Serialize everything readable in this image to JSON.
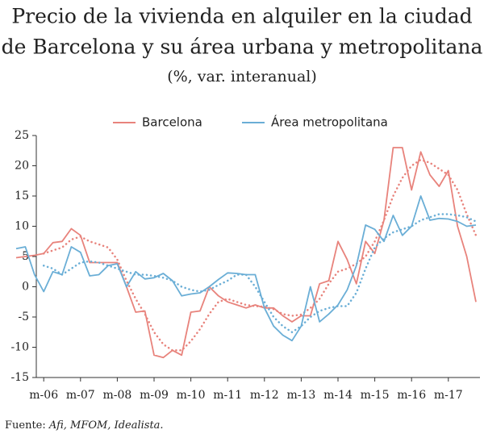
{
  "chart_data": {
    "type": "line",
    "title": [
      "Precio de la vivienda en alquiler en la ciudad",
      "de Barcelona y su área urbana y metropolitana"
    ],
    "subtitle": "(%, var. interanual)",
    "source_label": "Fuente:",
    "source": "Afi, MFOM, Idealista.",
    "categories": [
      null,
      null,
      null,
      "m-06",
      null,
      null,
      null,
      "m-07",
      null,
      null,
      null,
      "m-08",
      null,
      null,
      null,
      "m-09",
      null,
      null,
      null,
      "m-10",
      null,
      null,
      null,
      "m-11",
      null,
      null,
      null,
      "m-12",
      null,
      null,
      null,
      "m-13",
      null,
      null,
      null,
      "m-14",
      null,
      null,
      null,
      "m-15",
      null,
      null,
      null,
      "m-16",
      null,
      null,
      null,
      "m-17",
      null,
      null,
      null
    ],
    "ylim": [
      -15,
      25
    ],
    "yticks": [
      -15,
      -10,
      -5,
      0,
      5,
      10,
      15,
      20,
      25
    ],
    "grid": false,
    "legend": "top",
    "series": [
      {
        "name": "Barcelona",
        "color": "#e8837c",
        "values": [
          4.8,
          5.0,
          5.2,
          5.5,
          7.3,
          7.5,
          9.6,
          8.5,
          4.0,
          4.0,
          4.0,
          4.0,
          0,
          -4.2,
          -4.0,
          -11.3,
          -11.7,
          -10.5,
          -11.3,
          -4.2,
          -4.0,
          0,
          -1.5,
          -2.5,
          -3,
          -3.5,
          -3,
          -3.5,
          -3.5,
          -4.8,
          -5.8,
          -4.8,
          -4.8,
          0.5,
          1,
          7.5,
          4.5,
          0.5,
          7.5,
          5.5,
          11,
          23,
          23,
          16,
          22.3,
          18.5,
          16.6,
          19.2,
          10,
          5,
          -2.5
        ],
        "trend_values": [
          null,
          null,
          null,
          5.5,
          6,
          6.5,
          7.8,
          8.3,
          7.5,
          7,
          6.5,
          4.5,
          1,
          -2,
          -4.5,
          -7.5,
          -9.5,
          -10.5,
          -10.5,
          -9,
          -7,
          -4.5,
          -2.5,
          -2,
          -2.5,
          -3,
          -3.2,
          -3.3,
          -3.7,
          -4.5,
          -4.8,
          -4.6,
          -3.5,
          -2,
          0.5,
          2.5,
          3,
          3.8,
          5,
          7.5,
          11,
          15,
          18,
          20,
          21,
          20.5,
          19.5,
          18.5,
          16,
          12,
          8.5
        ]
      },
      {
        "name": "Área metropolitana",
        "color": "#6aaed6",
        "values": [
          6.3,
          6.6,
          2,
          -0.8,
          2.5,
          2.0,
          6.6,
          5.7,
          1.8,
          2,
          3.5,
          3.8,
          0,
          2.5,
          1.3,
          1.5,
          2.2,
          1.0,
          -1.5,
          -1.2,
          -1,
          0,
          1.2,
          2.3,
          2.2,
          2.0,
          2.0,
          -3.5,
          -6.5,
          -8,
          -8.9,
          -6.5,
          0,
          -5.8,
          -4.5,
          -3,
          -0.5,
          3.5,
          10.2,
          9.5,
          7.5,
          11.8,
          8.5,
          10,
          15,
          11,
          11.3,
          11.2,
          10.8,
          10,
          10.2
        ],
        "trend_values": [
          null,
          null,
          null,
          3.5,
          3,
          2,
          3,
          4,
          4.2,
          4,
          3.5,
          3,
          2.5,
          2,
          2,
          1.8,
          1.5,
          1,
          0,
          -0.5,
          -0.8,
          -0.5,
          0.3,
          1,
          2,
          2,
          0,
          -2.5,
          -5,
          -6.5,
          -7.5,
          -6.5,
          -5,
          -4,
          -3.5,
          -3.2,
          -3.2,
          -1,
          3,
          6.5,
          8,
          9,
          9.5,
          10,
          11,
          11.5,
          12,
          12,
          11.8,
          11.5,
          10.8
        ]
      }
    ]
  }
}
